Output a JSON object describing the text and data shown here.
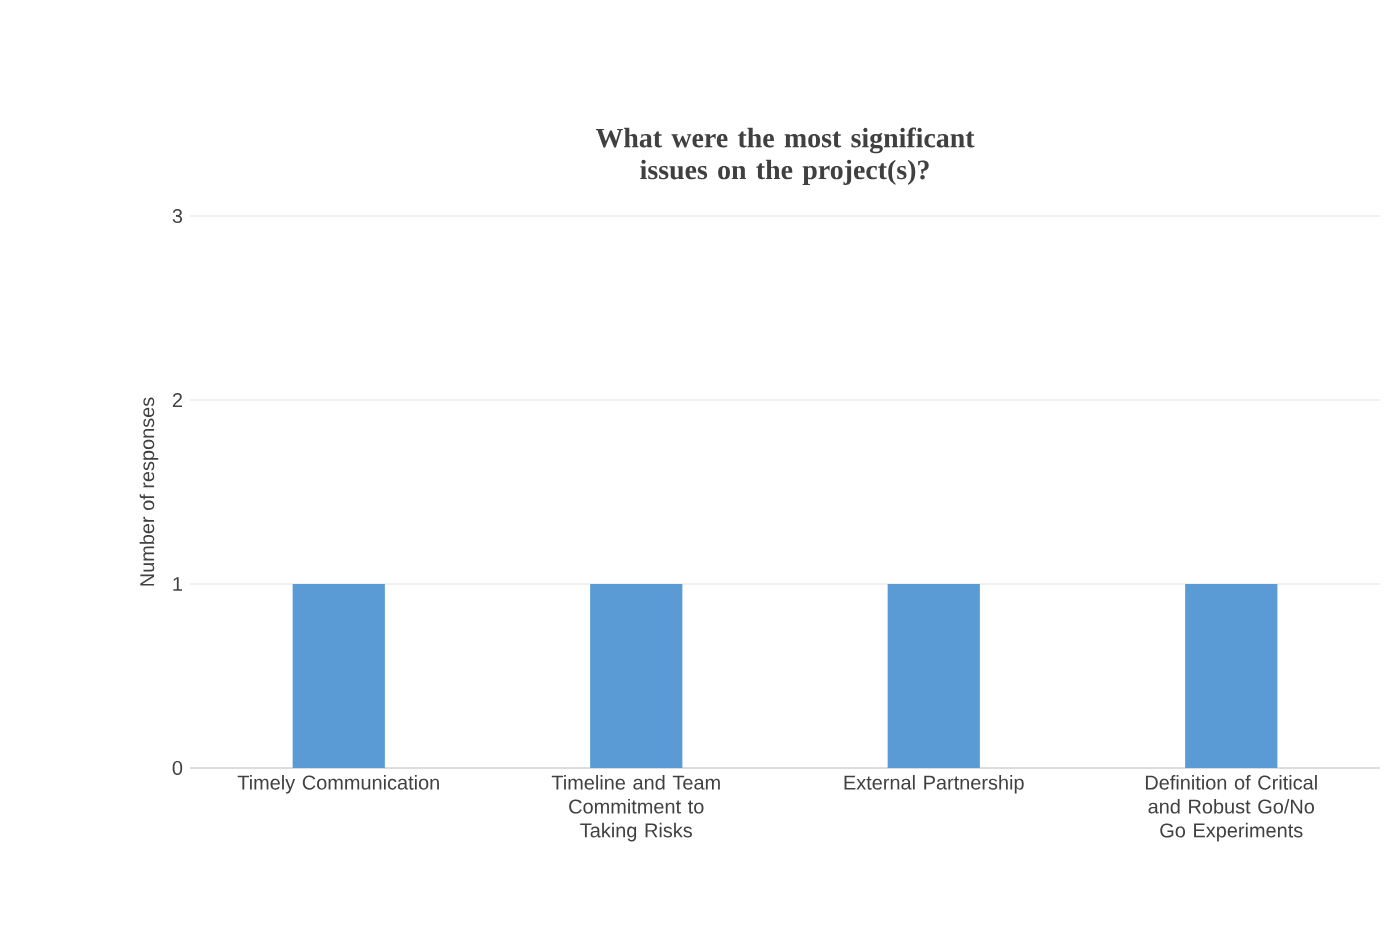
{
  "chart_data": {
    "type": "bar",
    "title": "What were the most significant issues on the project(s)?",
    "ylabel": "Number of responses",
    "categories": [
      "Timely Communication",
      "Timeline and Team Commitment to Taking Risks",
      "External Partnership",
      "Definition of Critical and Robust Go/No Go Experiments"
    ],
    "values": [
      1,
      1,
      1,
      1
    ],
    "color": "#5b9bd5",
    "ylim": [
      0,
      3
    ],
    "yticks": [
      0,
      1,
      2,
      3
    ],
    "grid": "y"
  }
}
